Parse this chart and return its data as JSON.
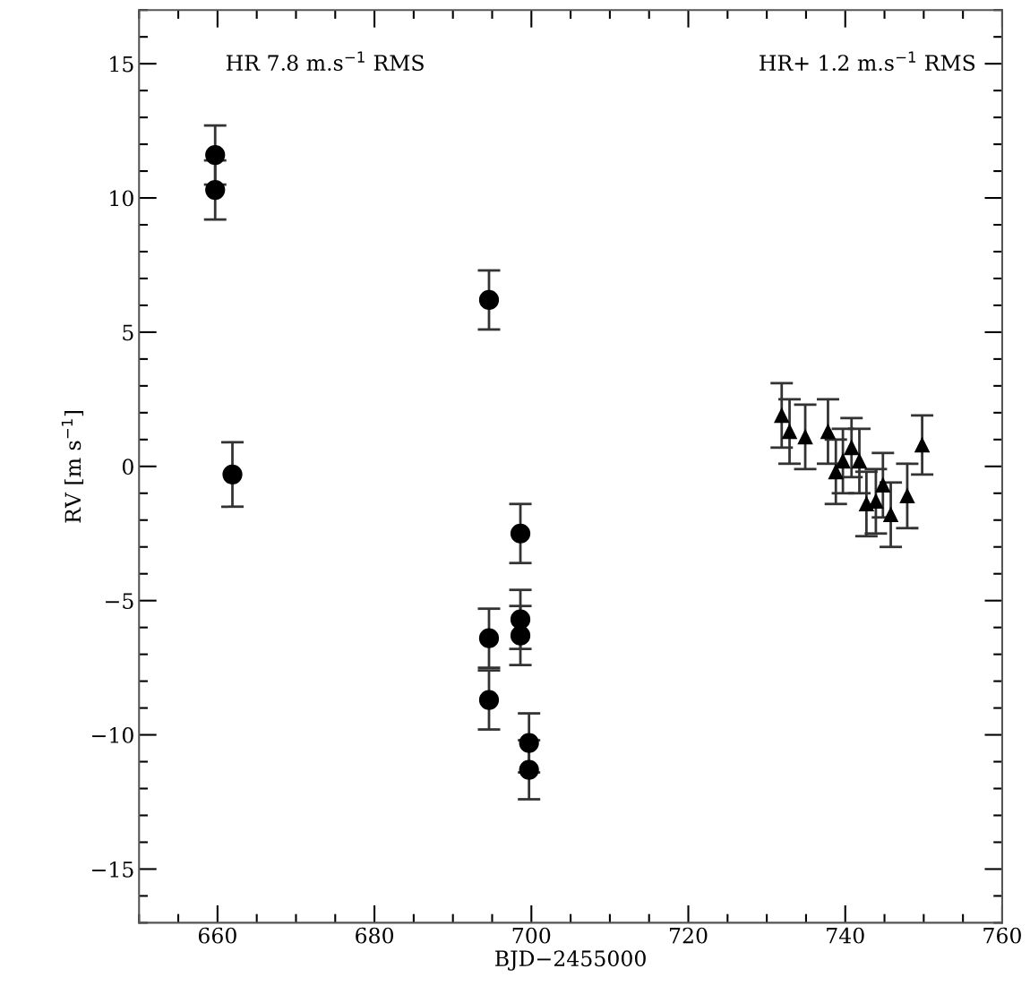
{
  "chart_data": {
    "type": "scatter",
    "xlabel": "BJD−2455000",
    "ylabel": "RV [m s$^{−1}$]",
    "xlim": [
      650,
      760
    ],
    "xticks": [
      660,
      680,
      700,
      720,
      740,
      760
    ],
    "ylim": [
      -17,
      17
    ],
    "yticks": [
      -15,
      -10,
      -5,
      0,
      5,
      10,
      15
    ],
    "grid": false,
    "legend": false,
    "annotations": [
      "HR 7.8 m.s$^{−1}$ RMS",
      "HR+ 1.2 m.s$^{−1}$ RMS"
    ],
    "series": [
      {
        "color": "#000000",
        "marker": "circle",
        "x": [
          659.7,
          659.7,
          661.9,
          694.6,
          694.6,
          694.6,
          698.6,
          698.6,
          698.6,
          699.7,
          699.7
        ],
        "values": [
          11.6,
          10.3,
          -0.3,
          6.2,
          -6.4,
          -8.7,
          -2.5,
          -5.7,
          -6.3,
          -10.3,
          -11.3
        ],
        "errors": [
          1.1,
          1.1,
          1.2,
          1.1,
          1.1,
          1.1,
          1.1,
          1.1,
          1.1,
          1.1,
          1.1
        ]
      },
      {
        "color": "#000000",
        "marker": "triangle",
        "x": [
          731.9,
          732.9,
          734.9,
          737.8,
          738.8,
          739.7,
          740.8,
          741.8,
          742.7,
          743.9,
          744.8,
          745.8,
          747.9,
          749.8
        ],
        "values": [
          1.9,
          1.3,
          1.1,
          1.3,
          -0.2,
          0.2,
          0.7,
          0.2,
          -1.4,
          -1.3,
          -0.7,
          -1.8,
          -1.1,
          0.8
        ],
        "errors": [
          1.2,
          1.2,
          1.2,
          1.2,
          1.2,
          1.2,
          1.1,
          1.2,
          1.2,
          1.2,
          1.2,
          1.2,
          1.2,
          1.1
        ]
      }
    ]
  }
}
